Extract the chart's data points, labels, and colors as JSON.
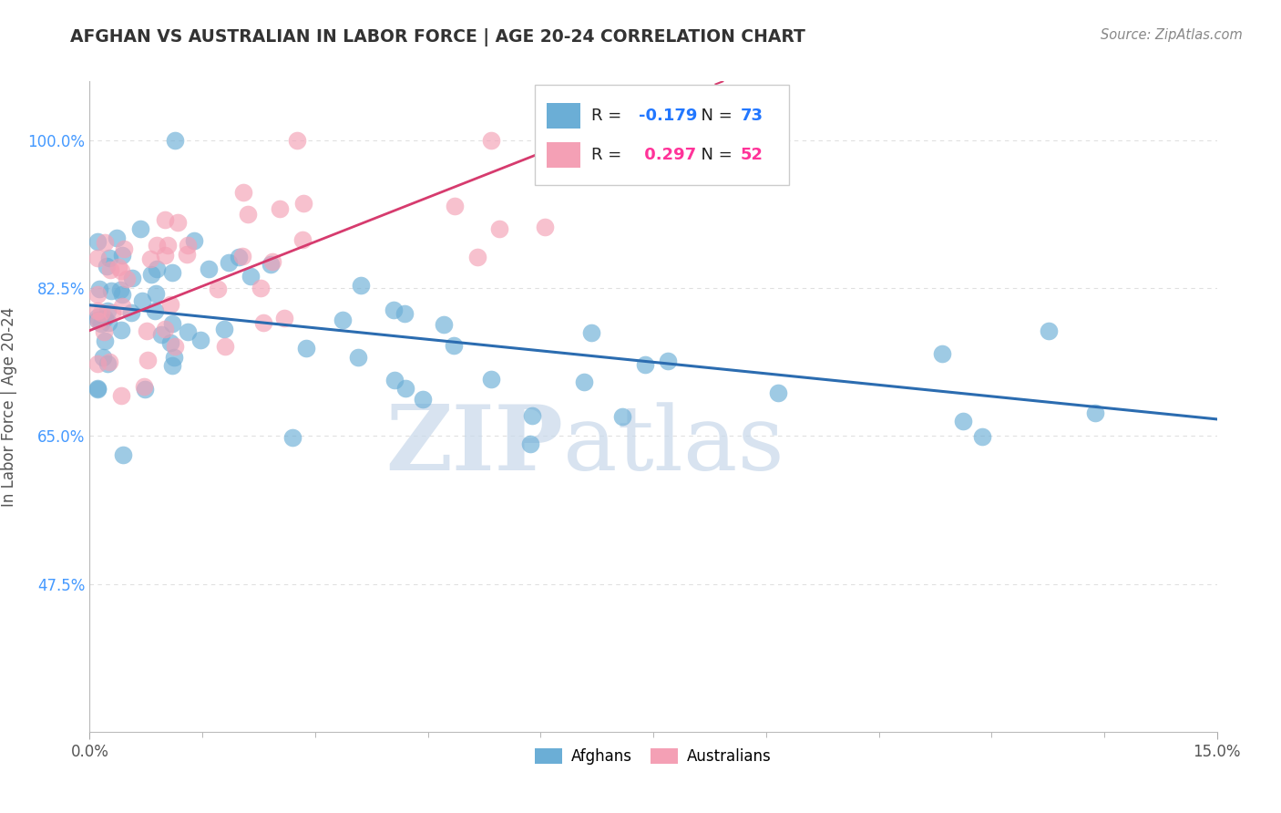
{
  "title": "AFGHAN VS AUSTRALIAN IN LABOR FORCE | AGE 20-24 CORRELATION CHART",
  "source": "Source: ZipAtlas.com",
  "ylabel": "In Labor Force | Age 20-24",
  "xlim": [
    0.0,
    0.15
  ],
  "ylim": [
    0.3,
    1.07
  ],
  "xticks_major": [
    0.0,
    0.15
  ],
  "xticks_minor": [
    0.015,
    0.03,
    0.045,
    0.06,
    0.075,
    0.09,
    0.105,
    0.12,
    0.135
  ],
  "xticklabels_major": [
    "0.0%",
    "15.0%"
  ],
  "yticks": [
    0.475,
    0.65,
    0.825,
    1.0
  ],
  "yticklabels": [
    "47.5%",
    "65.0%",
    "82.5%",
    "100.0%"
  ],
  "afghan_color": "#6baed6",
  "australian_color": "#f4a0b5",
  "afghan_R": -0.179,
  "afghan_N": 73,
  "australian_R": 0.297,
  "australian_N": 52,
  "afghan_line_color": "#2b6cb0",
  "australian_line_color": "#d63b6e",
  "watermark_zip": "ZIP",
  "watermark_atlas": "atlas",
  "watermark_color": "#c8d8ea",
  "background_color": "#ffffff",
  "grid_color": "#e0e0e0",
  "title_color": "#333333",
  "ylabel_color": "#555555",
  "ytick_color": "#4499ff",
  "xtick_color": "#555555",
  "source_color": "#888888"
}
